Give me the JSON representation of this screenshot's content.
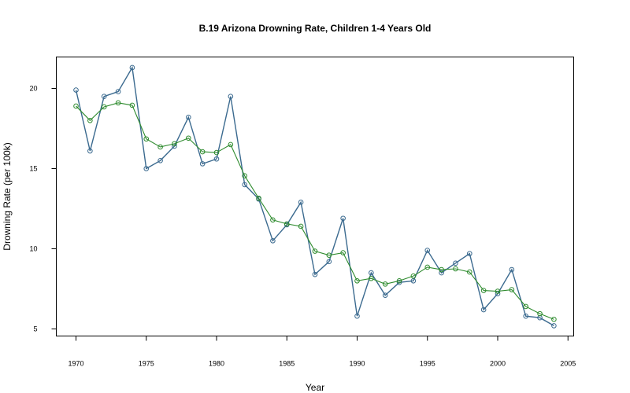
{
  "chart_data": {
    "type": "line",
    "title": "B.19  Arizona Drowning Rate, Children 1-4 Years Old",
    "xlabel": "Year",
    "ylabel": "Drowning Rate (per 100k)",
    "xlim": [
      1970,
      2005
    ],
    "ylim": [
      5,
      22
    ],
    "x_ticks": [
      1970,
      1975,
      1980,
      1985,
      1990,
      1995,
      2000,
      2005
    ],
    "y_ticks": [
      5,
      10,
      15,
      20
    ],
    "grid": false,
    "x": [
      1970,
      1971,
      1972,
      1973,
      1974,
      1975,
      1976,
      1977,
      1978,
      1979,
      1980,
      1981,
      1982,
      1983,
      1984,
      1985,
      1986,
      1987,
      1988,
      1989,
      1990,
      1991,
      1992,
      1993,
      1994,
      1995,
      1996,
      1997,
      1998,
      1999,
      2000,
      2001,
      2002,
      2003,
      2004
    ],
    "series": [
      {
        "color": "#3b6a8f",
        "values": [
          19.9,
          16.1,
          19.5,
          19.8,
          21.3,
          15.0,
          15.5,
          16.4,
          18.2,
          15.3,
          15.6,
          19.5,
          14.0,
          13.1,
          10.5,
          11.5,
          12.9,
          8.4,
          9.2,
          11.9,
          5.8,
          8.5,
          7.1,
          7.9,
          8.0,
          9.9,
          8.5,
          9.1,
          9.7,
          6.2,
          7.2,
          8.7,
          5.8,
          5.7,
          5.2
        ]
      },
      {
        "color": "#2e8b2e",
        "values": [
          18.9,
          18.0,
          18.85,
          19.1,
          18.95,
          16.85,
          16.35,
          16.55,
          16.9,
          16.05,
          16.0,
          16.5,
          14.55,
          13.15,
          11.8,
          11.55,
          11.4,
          9.85,
          9.6,
          9.75,
          8.0,
          8.15,
          7.8,
          8.0,
          8.3,
          8.85,
          8.7,
          8.75,
          8.55,
          7.4,
          7.35,
          7.45,
          6.4,
          5.95,
          5.6
        ]
      }
    ]
  }
}
